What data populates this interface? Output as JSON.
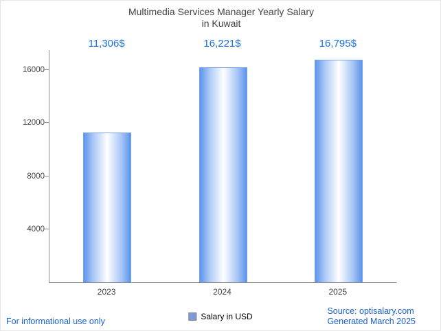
{
  "title": {
    "line1": "Multimedia Services Manager Yearly Salary",
    "line2": "in Kuwait"
  },
  "chart_data": {
    "type": "bar",
    "title": "Multimedia Services Manager Yearly Salary in Kuwait",
    "categories": [
      "2023",
      "2024",
      "2025"
    ],
    "values": [
      11306,
      16221,
      16795
    ],
    "value_labels": [
      "11,306$",
      "16,221$",
      "16,795$"
    ],
    "series_name": "Salary in USD",
    "xlabel": "",
    "ylabel": "",
    "ylim": [
      0,
      17500
    ],
    "yticks": [
      4000,
      8000,
      12000,
      16000
    ],
    "grid": false,
    "legend_position": "bottom",
    "bar_edge_color": "#5d94ec",
    "bar_center_color": "#ffffff"
  },
  "legend": {
    "label": "Salary in USD",
    "swatch_color": "#7e9ad6"
  },
  "footer": {
    "left": "For informational use only",
    "source": "Source: optisalary.com",
    "generated": "Generated March 2025"
  },
  "colors": {
    "accent": "#1a6fdb",
    "title_text": "#424242",
    "axis": "#8a8a8a",
    "footer_link": "#1a5fd0"
  }
}
